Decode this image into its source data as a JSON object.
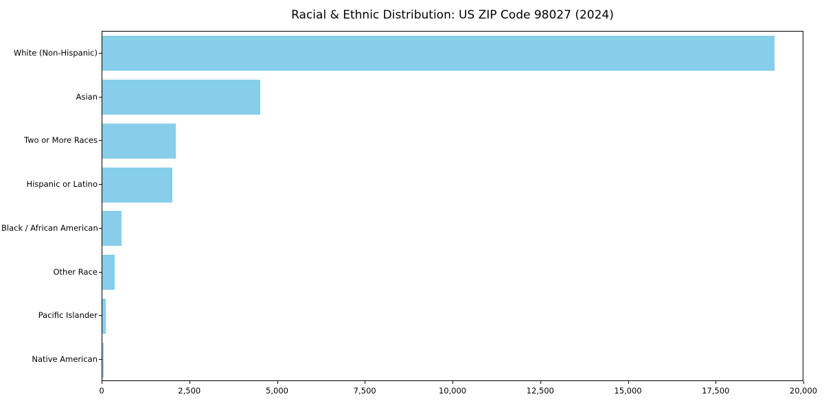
{
  "chart_data": {
    "type": "bar",
    "orientation": "horizontal",
    "title": "Racial & Ethnic Distribution: US ZIP Code 98027 (2024)",
    "categories": [
      "White (Non-Hispanic)",
      "Asian",
      "Two or More Races",
      "Hispanic or Latino",
      "Black / African American",
      "Other Race",
      "Pacific Islander",
      "Native American"
    ],
    "values": [
      19200,
      4500,
      2100,
      2000,
      550,
      350,
      100,
      40
    ],
    "xlabel": "",
    "ylabel": "",
    "xlim": [
      0,
      20000
    ],
    "xticks": [
      0,
      2500,
      5000,
      7500,
      10000,
      12500,
      15000,
      17500,
      20000
    ],
    "grid": false,
    "legend": null,
    "bar_color": "#87CEEB",
    "background_color": "#ffffff"
  }
}
